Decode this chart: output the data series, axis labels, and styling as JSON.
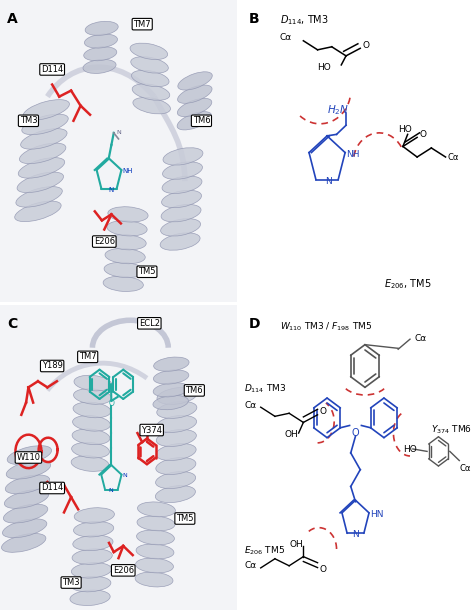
{
  "panel_labels": [
    "A",
    "B",
    "C",
    "D"
  ],
  "bg_color": "#ffffff",
  "black": "#000000",
  "blue": "#2244bb",
  "red_dashed": "#cc3333",
  "gray_helix": "#c8ccd8",
  "gray_helix_edge": "#9095b0",
  "gray_bg": "#d0d4e0",
  "dark_gray": "#555555",
  "teal": "#22aaa0",
  "red_stick": "#dd2222"
}
